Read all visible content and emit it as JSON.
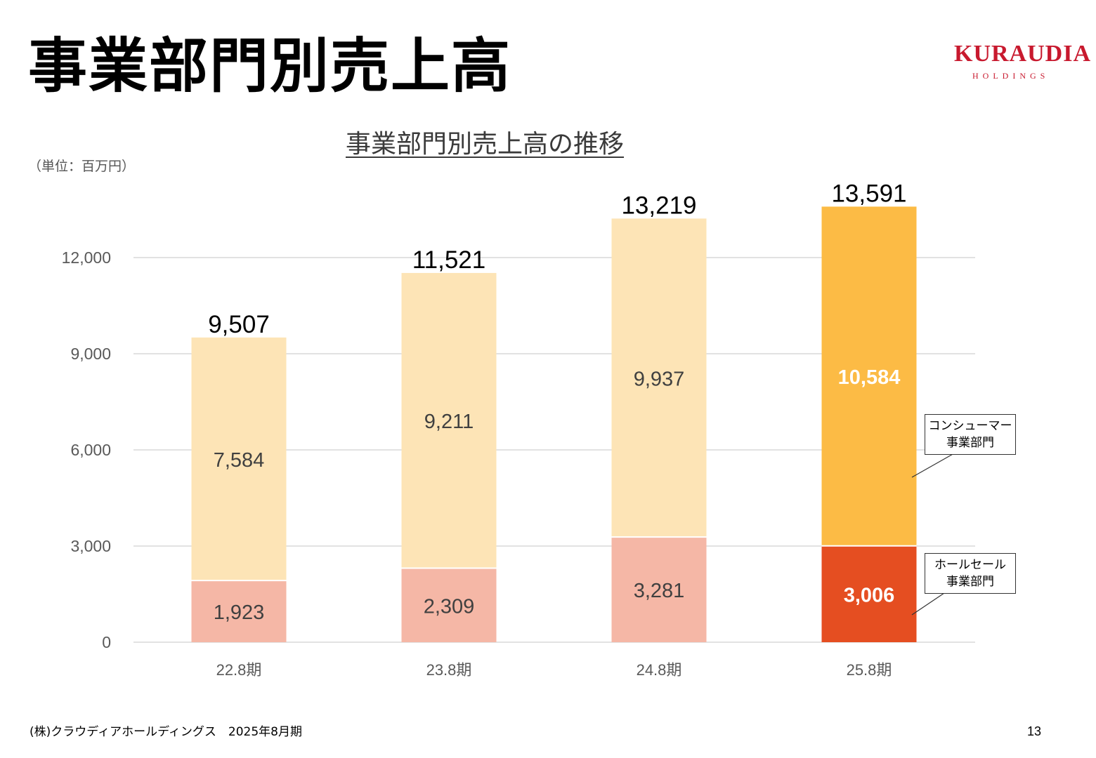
{
  "header": {
    "title": "事業部門別売上高",
    "logo_main": "KURAUDIA",
    "logo_sub": "HOLDINGS"
  },
  "chart_title": "事業部門別売上高の推移",
  "unit_label": "（単位：百万円）",
  "footer": {
    "company_period": "(株)クラウディアホールディングス　2025年8月期",
    "page_number": "13"
  },
  "callouts": {
    "consumer": [
      "コンシューマー",
      "事業部門"
    ],
    "wholesale": [
      "ホールセール",
      "事業部門"
    ]
  },
  "colors": {
    "wholesale_past": "#f5b7a6",
    "consumer_past": "#fde4b6",
    "wholesale_current": "#e54e21",
    "consumer_current": "#fcbb45",
    "grid": "#d9d9d9",
    "axis_text": "#595959",
    "logo_red": "#c8192e"
  },
  "chart_data": {
    "type": "bar",
    "stacked": true,
    "categories": [
      "22.8期",
      "23.8期",
      "24.8期",
      "25.8期"
    ],
    "series": [
      {
        "name": "ホールセール事業部門",
        "values": [
          1923,
          2309,
          3281,
          3006
        ]
      },
      {
        "name": "コンシューマー事業部門",
        "values": [
          7584,
          9211,
          9937,
          10584
        ]
      }
    ],
    "totals": [
      9507,
      11521,
      13219,
      13591
    ],
    "value_labels": {
      "wholesale": [
        "1,923",
        "2,309",
        "3,281",
        "3,006"
      ],
      "consumer": [
        "7,584",
        "9,211",
        "9,937",
        "10,584"
      ],
      "totals": [
        "9,507",
        "11,521",
        "13,219",
        "13,591"
      ]
    },
    "yticks": [
      0,
      3000,
      6000,
      9000,
      12000
    ],
    "ytick_labels": [
      "0",
      "3,000",
      "6,000",
      "9,000",
      "12,000"
    ],
    "ylim": [
      0,
      13600
    ],
    "grid": true,
    "highlight_category": "25.8期"
  }
}
